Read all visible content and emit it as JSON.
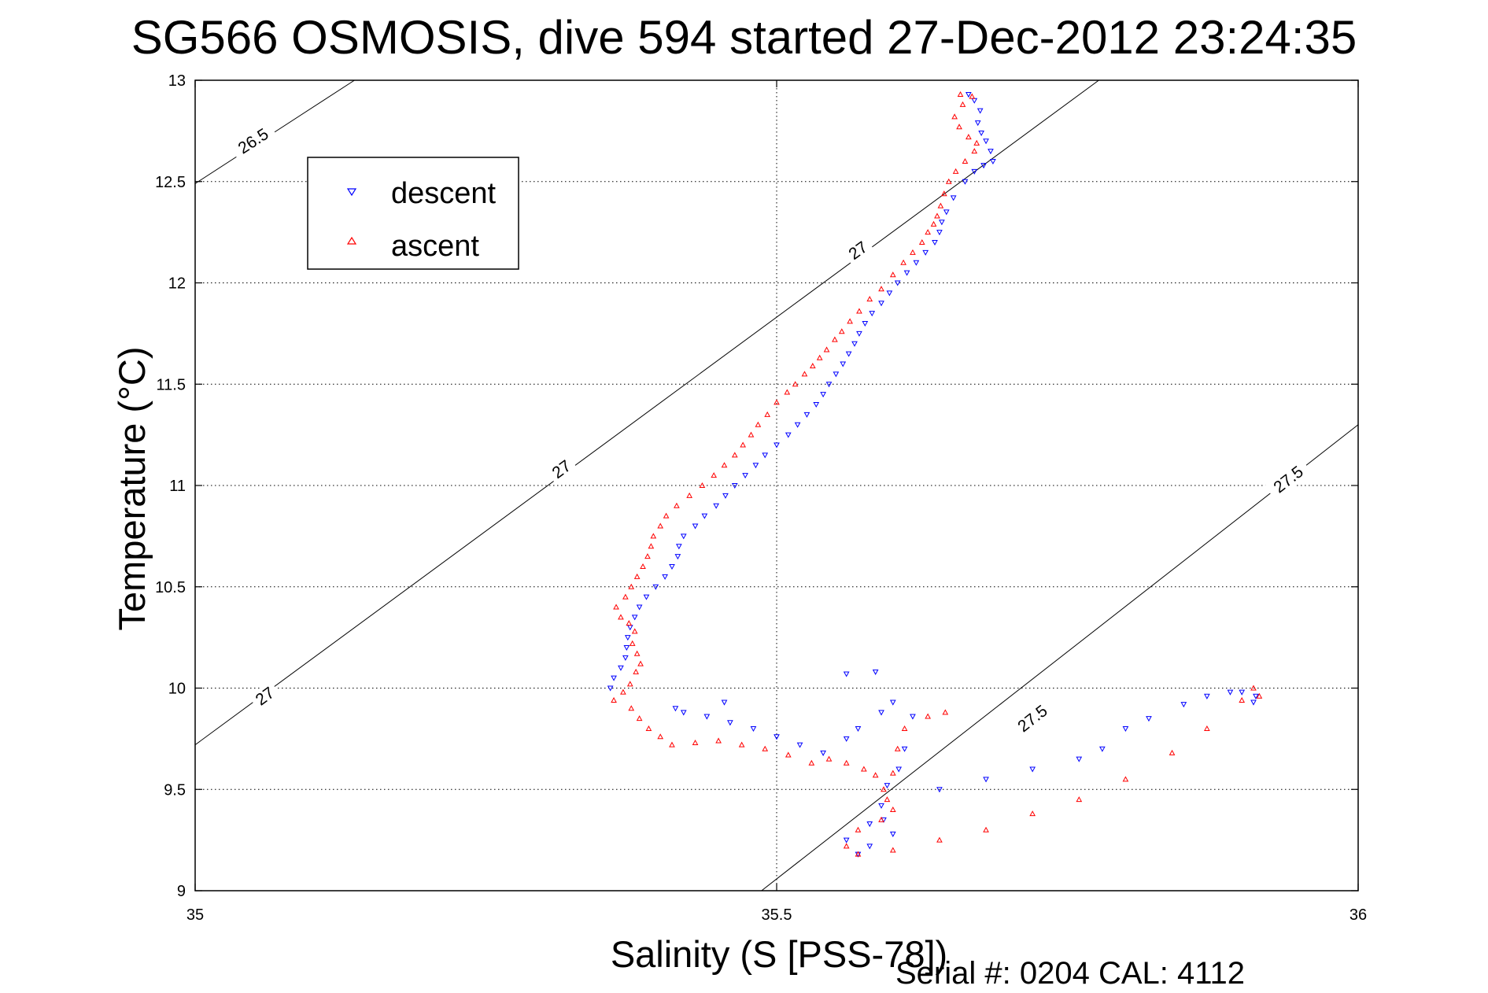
{
  "chart_data": {
    "type": "scatter",
    "title": "SG566 OSMOSIS, dive 594 started 27-Dec-2012 23:24:35",
    "xlabel": "Salinity (S [PSS-78])",
    "ylabel": "Temperature (°C)",
    "footer": "Serial #: 0204  CAL: 4112",
    "xlim": [
      35,
      36
    ],
    "ylim": [
      9,
      13
    ],
    "xticks": [
      "35",
      "35.5",
      "36"
    ],
    "yticks": [
      "9",
      "9.5",
      "10",
      "10.5",
      "11",
      "11.5",
      "12",
      "12.5",
      "13"
    ],
    "grid": true,
    "legend_position": "top-left",
    "density_contours": [
      {
        "label": "26.5",
        "points": [
          [
            35.0,
            12.49
          ],
          [
            35.137,
            13.0
          ]
        ]
      },
      {
        "label": "27",
        "points": [
          [
            35.0,
            9.72
          ],
          [
            35.777,
            13.0
          ]
        ]
      },
      {
        "label": "27.5",
        "points": [
          [
            35.487,
            9.0
          ],
          [
            36.0,
            11.3
          ]
        ]
      }
    ],
    "contour_labels": [
      {
        "text": "26.5",
        "x": 35.05,
        "y": 12.7
      },
      {
        "text": "27",
        "x": 35.57,
        "y": 12.16
      },
      {
        "text": "27",
        "x": 35.315,
        "y": 11.08
      },
      {
        "text": "27",
        "x": 35.06,
        "y": 9.96
      },
      {
        "text": "27.5",
        "x": 35.72,
        "y": 9.85
      },
      {
        "text": "27.5",
        "x": 35.94,
        "y": 11.03
      }
    ],
    "series": [
      {
        "name": "descent",
        "color": "#0000ff",
        "marker": "triangle-down",
        "points": [
          [
            35.665,
            12.93
          ],
          [
            35.67,
            12.9
          ],
          [
            35.675,
            12.85
          ],
          [
            35.673,
            12.79
          ],
          [
            35.676,
            12.74
          ],
          [
            35.68,
            12.7
          ],
          [
            35.684,
            12.65
          ],
          [
            35.686,
            12.6
          ],
          [
            35.678,
            12.58
          ],
          [
            35.67,
            12.55
          ],
          [
            35.662,
            12.5
          ],
          [
            35.652,
            12.42
          ],
          [
            35.646,
            12.35
          ],
          [
            35.642,
            12.3
          ],
          [
            35.64,
            12.25
          ],
          [
            35.636,
            12.2
          ],
          [
            35.628,
            12.15
          ],
          [
            35.62,
            12.1
          ],
          [
            35.612,
            12.05
          ],
          [
            35.604,
            12.0
          ],
          [
            35.597,
            11.95
          ],
          [
            35.59,
            11.9
          ],
          [
            35.582,
            11.85
          ],
          [
            35.576,
            11.8
          ],
          [
            35.571,
            11.75
          ],
          [
            35.567,
            11.7
          ],
          [
            35.562,
            11.65
          ],
          [
            35.557,
            11.6
          ],
          [
            35.551,
            11.55
          ],
          [
            35.545,
            11.5
          ],
          [
            35.54,
            11.45
          ],
          [
            35.534,
            11.4
          ],
          [
            35.526,
            11.35
          ],
          [
            35.518,
            11.3
          ],
          [
            35.51,
            11.25
          ],
          [
            35.5,
            11.2
          ],
          [
            35.49,
            11.15
          ],
          [
            35.482,
            11.1
          ],
          [
            35.473,
            11.05
          ],
          [
            35.464,
            11.0
          ],
          [
            35.456,
            10.95
          ],
          [
            35.448,
            10.9
          ],
          [
            35.438,
            10.85
          ],
          [
            35.43,
            10.8
          ],
          [
            35.42,
            10.75
          ],
          [
            35.416,
            10.7
          ],
          [
            35.415,
            10.65
          ],
          [
            35.41,
            10.6
          ],
          [
            35.404,
            10.55
          ],
          [
            35.396,
            10.5
          ],
          [
            35.388,
            10.45
          ],
          [
            35.382,
            10.4
          ],
          [
            35.378,
            10.35
          ],
          [
            35.374,
            10.3
          ],
          [
            35.372,
            10.25
          ],
          [
            35.371,
            10.2
          ],
          [
            35.37,
            10.15
          ],
          [
            35.366,
            10.1
          ],
          [
            35.36,
            10.05
          ],
          [
            35.357,
            10.0
          ],
          [
            35.455,
            9.93
          ],
          [
            35.413,
            9.9
          ],
          [
            35.42,
            9.88
          ],
          [
            35.44,
            9.86
          ],
          [
            35.46,
            9.83
          ],
          [
            35.48,
            9.8
          ],
          [
            35.5,
            9.76
          ],
          [
            35.52,
            9.72
          ],
          [
            35.54,
            9.68
          ],
          [
            35.56,
            9.75
          ],
          [
            35.57,
            9.8
          ],
          [
            35.59,
            9.88
          ],
          [
            35.6,
            9.93
          ],
          [
            35.617,
            9.86
          ],
          [
            35.61,
            9.7
          ],
          [
            35.605,
            9.6
          ],
          [
            35.595,
            9.52
          ],
          [
            35.59,
            9.42
          ],
          [
            35.592,
            9.35
          ],
          [
            35.6,
            9.28
          ],
          [
            35.58,
            9.22
          ],
          [
            35.57,
            9.18
          ],
          [
            35.56,
            9.25
          ],
          [
            35.58,
            9.33
          ],
          [
            35.56,
            10.07
          ],
          [
            35.585,
            10.08
          ],
          [
            35.64,
            9.5
          ],
          [
            35.68,
            9.55
          ],
          [
            35.72,
            9.6
          ],
          [
            35.76,
            9.65
          ],
          [
            35.78,
            9.7
          ],
          [
            35.8,
            9.8
          ],
          [
            35.82,
            9.85
          ],
          [
            35.85,
            9.92
          ],
          [
            35.87,
            9.96
          ],
          [
            35.89,
            9.98
          ],
          [
            35.9,
            9.98
          ],
          [
            35.912,
            9.96
          ],
          [
            35.91,
            9.93
          ]
        ]
      },
      {
        "name": "ascent",
        "color": "#ff0000",
        "marker": "triangle-up",
        "points": [
          [
            35.658,
            12.93
          ],
          [
            35.668,
            12.92
          ],
          [
            35.66,
            12.88
          ],
          [
            35.653,
            12.82
          ],
          [
            35.657,
            12.77
          ],
          [
            35.665,
            12.72
          ],
          [
            35.672,
            12.69
          ],
          [
            35.67,
            12.65
          ],
          [
            35.662,
            12.6
          ],
          [
            35.654,
            12.55
          ],
          [
            35.648,
            12.5
          ],
          [
            35.644,
            12.44
          ],
          [
            35.641,
            12.38
          ],
          [
            35.638,
            12.33
          ],
          [
            35.635,
            12.29
          ],
          [
            35.63,
            12.25
          ],
          [
            35.625,
            12.2
          ],
          [
            35.617,
            12.15
          ],
          [
            35.609,
            12.1
          ],
          [
            35.6,
            12.04
          ],
          [
            35.59,
            11.97
          ],
          [
            35.58,
            11.92
          ],
          [
            35.571,
            11.86
          ],
          [
            35.563,
            11.81
          ],
          [
            35.556,
            11.76
          ],
          [
            35.55,
            11.72
          ],
          [
            35.543,
            11.67
          ],
          [
            35.537,
            11.63
          ],
          [
            35.531,
            11.59
          ],
          [
            35.524,
            11.55
          ],
          [
            35.516,
            11.5
          ],
          [
            35.509,
            11.46
          ],
          [
            35.5,
            11.41
          ],
          [
            35.492,
            11.35
          ],
          [
            35.484,
            11.3
          ],
          [
            35.478,
            11.25
          ],
          [
            35.471,
            11.2
          ],
          [
            35.464,
            11.15
          ],
          [
            35.455,
            11.1
          ],
          [
            35.446,
            11.05
          ],
          [
            35.436,
            11.0
          ],
          [
            35.425,
            10.95
          ],
          [
            35.414,
            10.9
          ],
          [
            35.405,
            10.85
          ],
          [
            35.4,
            10.8
          ],
          [
            35.394,
            10.75
          ],
          [
            35.392,
            10.7
          ],
          [
            35.389,
            10.65
          ],
          [
            35.385,
            10.6
          ],
          [
            35.38,
            10.55
          ],
          [
            35.375,
            10.5
          ],
          [
            35.37,
            10.45
          ],
          [
            35.362,
            10.4
          ],
          [
            35.366,
            10.35
          ],
          [
            35.373,
            10.32
          ],
          [
            35.378,
            10.28
          ],
          [
            35.376,
            10.22
          ],
          [
            35.38,
            10.17
          ],
          [
            35.383,
            10.12
          ],
          [
            35.379,
            10.08
          ],
          [
            35.374,
            10.02
          ],
          [
            35.368,
            9.98
          ],
          [
            35.36,
            9.94
          ],
          [
            35.375,
            9.9
          ],
          [
            35.382,
            9.85
          ],
          [
            35.39,
            9.8
          ],
          [
            35.4,
            9.76
          ],
          [
            35.41,
            9.72
          ],
          [
            35.43,
            9.73
          ],
          [
            35.45,
            9.74
          ],
          [
            35.47,
            9.72
          ],
          [
            35.49,
            9.7
          ],
          [
            35.51,
            9.67
          ],
          [
            35.53,
            9.63
          ],
          [
            35.545,
            9.65
          ],
          [
            35.56,
            9.63
          ],
          [
            35.575,
            9.6
          ],
          [
            35.585,
            9.57
          ],
          [
            35.592,
            9.5
          ],
          [
            35.595,
            9.45
          ],
          [
            35.6,
            9.58
          ],
          [
            35.604,
            9.7
          ],
          [
            35.61,
            9.8
          ],
          [
            35.63,
            9.86
          ],
          [
            35.645,
            9.88
          ],
          [
            35.6,
            9.4
          ],
          [
            35.59,
            9.35
          ],
          [
            35.57,
            9.3
          ],
          [
            35.56,
            9.22
          ],
          [
            35.57,
            9.18
          ],
          [
            35.6,
            9.2
          ],
          [
            35.64,
            9.25
          ],
          [
            35.68,
            9.3
          ],
          [
            35.72,
            9.38
          ],
          [
            35.76,
            9.45
          ],
          [
            35.8,
            9.55
          ],
          [
            35.84,
            9.68
          ],
          [
            35.87,
            9.8
          ],
          [
            35.9,
            9.94
          ],
          [
            35.91,
            10.0
          ],
          [
            35.915,
            9.96
          ]
        ]
      }
    ]
  }
}
